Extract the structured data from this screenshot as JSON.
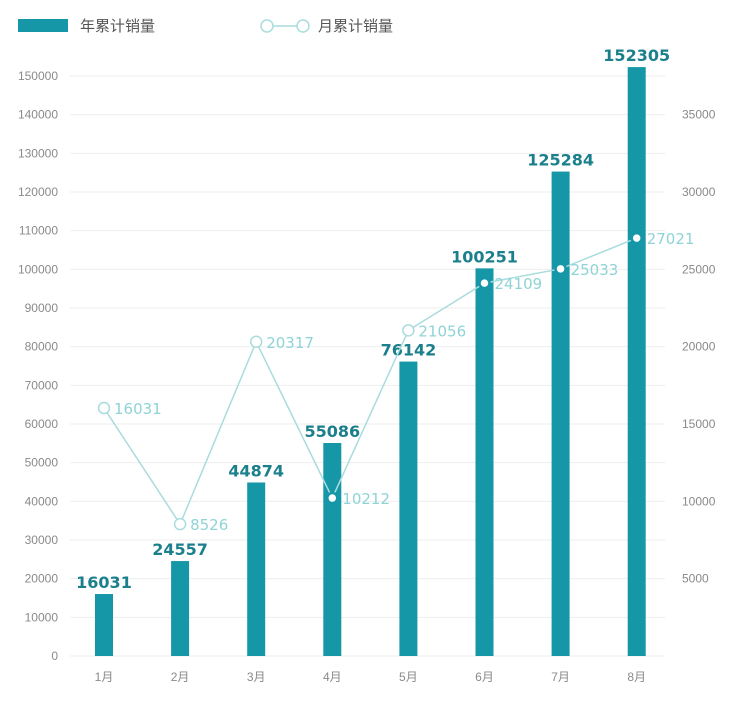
{
  "legend": {
    "bar_label": "年累计销量",
    "line_label": "月累计销量"
  },
  "colors": {
    "bar": "#1597a8",
    "bar_label": "#1b7f8c",
    "line": "#a9dcdd",
    "line_label": "#8fd3d6",
    "marker_hollow": "#ffffff",
    "grid": "#eeeeee"
  },
  "chart_data": {
    "type": "bar",
    "categories": [
      "1月",
      "2月",
      "3月",
      "4月",
      "5月",
      "6月",
      "7月",
      "8月"
    ],
    "series": [
      {
        "name": "年累计销量",
        "type": "bar",
        "axis": "left",
        "values": [
          16031,
          24557,
          44874,
          55086,
          76142,
          100251,
          125284,
          152305
        ],
        "data_labels": [
          "16031",
          "24557",
          "44874",
          "55086",
          "76142",
          "100251",
          "125284",
          "152305"
        ]
      },
      {
        "name": "月累计销量",
        "type": "line",
        "axis": "right",
        "values": [
          16031,
          8526,
          20317,
          10212,
          21056,
          24109,
          25033,
          27021
        ],
        "data_labels": [
          "16031",
          "8526",
          "20317",
          "10212",
          "21056",
          "24109",
          "25033",
          "27021"
        ],
        "filled_markers": [
          false,
          false,
          false,
          true,
          false,
          true,
          true,
          true
        ]
      }
    ],
    "y_left": {
      "range": [
        0,
        150000
      ],
      "ticks": [
        "0",
        "10000",
        "20000",
        "30000",
        "40000",
        "50000",
        "60000",
        "70000",
        "80000",
        "90000",
        "100000",
        "110000",
        "120000",
        "130000",
        "140000",
        "150000"
      ]
    },
    "y_right": {
      "range": [
        0,
        37500
      ],
      "ticks": [
        "5000",
        "10000",
        "15000",
        "20000",
        "25000",
        "30000",
        "35000"
      ]
    },
    "grid": true,
    "legend_position": "top-left"
  }
}
